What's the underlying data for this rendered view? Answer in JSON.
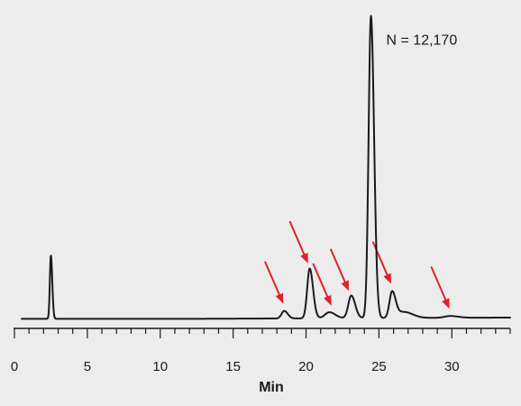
{
  "chart_data": {
    "type": "line",
    "title": "",
    "xlabel": "Min",
    "ylabel": "",
    "xlim": [
      0,
      34
    ],
    "ylim": [
      0,
      1
    ],
    "grid": false,
    "x_ticks_major": [
      0,
      5,
      10,
      15,
      20,
      25,
      30
    ],
    "x_tick_labels": [
      "0",
      "5",
      "10",
      "15",
      "20",
      "25",
      "30"
    ],
    "x_ticks_minor_step": 1,
    "baseline": 0.005,
    "baseline_drift": {
      "start_x": 13,
      "end_x": 34,
      "rise": 0.004
    },
    "series": [
      {
        "line_color": "#1a1a1a",
        "peaks": [
          {
            "x": 2.5,
            "height": 0.21,
            "width": 0.07
          },
          {
            "x": 18.5,
            "height": 0.025,
            "width": 0.18
          },
          {
            "x": 20.25,
            "height": 0.165,
            "width": 0.17
          },
          {
            "x": 21.6,
            "height": 0.02,
            "width": 0.3
          },
          {
            "x": 23.1,
            "height": 0.075,
            "width": 0.2
          },
          {
            "x": 24.45,
            "height": 1.0,
            "width": 0.16
          },
          {
            "x": 25.9,
            "height": 0.085,
            "width": 0.18
          },
          {
            "x": 26.7,
            "height": 0.02,
            "width": 0.45
          },
          {
            "x": 29.9,
            "height": 0.006,
            "width": 0.4
          }
        ]
      }
    ],
    "annotations": [
      {
        "text": "N = 12,170",
        "x": 25.5,
        "y": 0.93
      }
    ],
    "markers": {
      "color": "#e0202a",
      "arrows": [
        {
          "x": 18.5
        },
        {
          "x": 20.2
        },
        {
          "x": 21.8
        },
        {
          "x": 23.0
        },
        {
          "x": 25.9
        },
        {
          "x": 29.9
        }
      ]
    }
  }
}
